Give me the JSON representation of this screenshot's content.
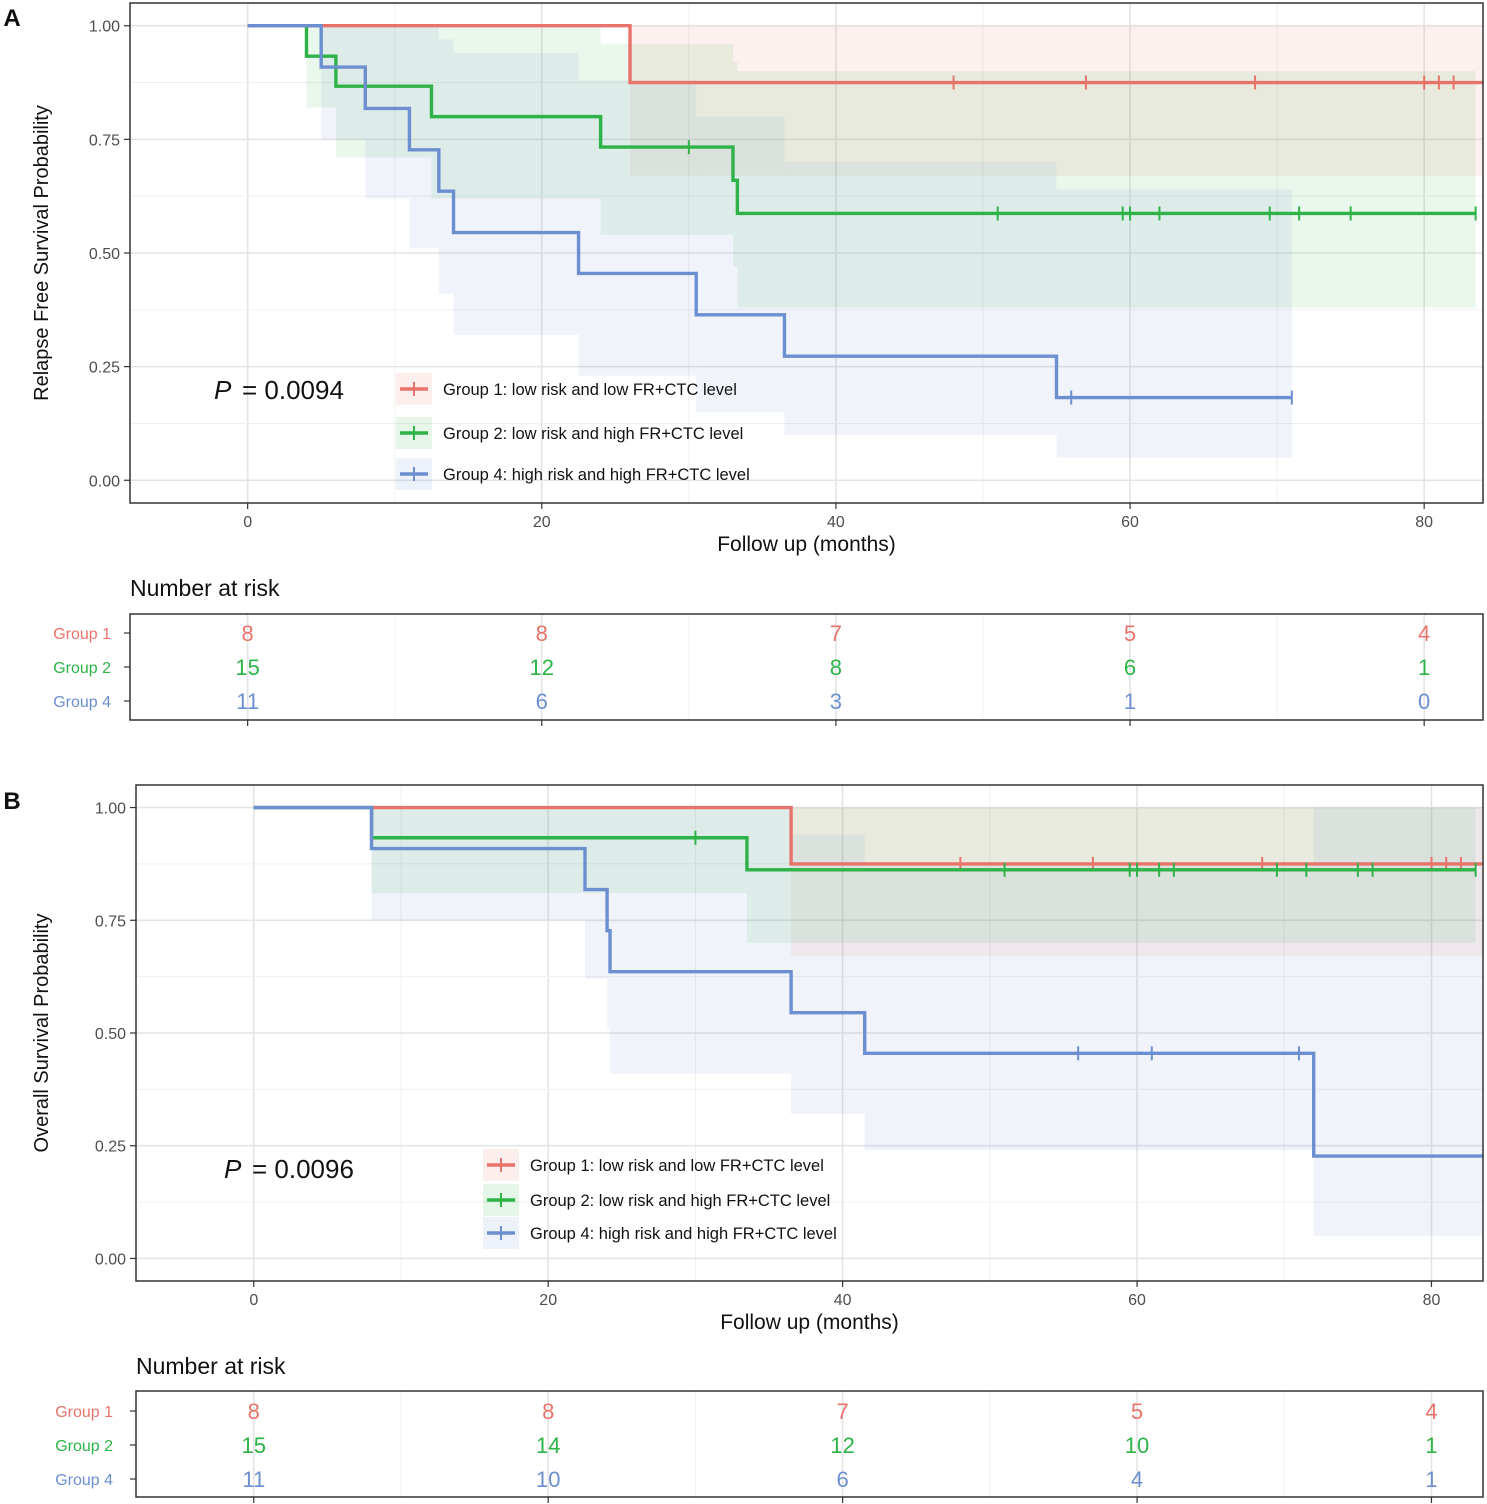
{
  "colors": {
    "group1": "#e8736b",
    "group2": "#2db347",
    "group4": "#6b8fd0",
    "grid_major": "#e4e4e4",
    "grid_minor": "#efefef",
    "panel_border": "#333333",
    "text": "#111111",
    "tick_text": "#4d4d4d"
  },
  "chart_data": [
    {
      "panel_label": "A",
      "type": "line",
      "subtype": "kaplan-meier",
      "ylabel": "Relapse Free Survival Probability",
      "xlabel": "Follow up (months)",
      "xlim": [
        -8,
        84
      ],
      "ylim": [
        -0.05,
        1.05
      ],
      "xticks": [
        0,
        20,
        40,
        60,
        80
      ],
      "yticks": [
        0,
        0.25,
        0.5,
        0.75,
        1.0
      ],
      "ytick_labels": [
        "0.00",
        "0.25",
        "0.50",
        "0.75",
        "1.00"
      ],
      "xtick_labels": [
        "0",
        "20",
        "40",
        "60",
        "80"
      ],
      "pvalue_prefix": "P",
      "pvalue_text": "= 0.0094",
      "legend": [
        "Group 1: low risk and low FR+CTC level",
        "Group 2: low risk and high FR+CTC level",
        "Group 4: high risk and high FR+CTC level"
      ],
      "series": [
        {
          "name": "Group 1",
          "color_key": "group1",
          "steps": [
            [
              0,
              1.0
            ],
            [
              26,
              0.875
            ],
            [
              84,
              0.875
            ]
          ],
          "ci": [
            [
              0,
              1.0,
              1.0
            ],
            [
              26,
              0.67,
              1.0
            ],
            [
              84,
              0.67,
              1.0
            ]
          ],
          "censor": [
            48,
            57,
            68.5,
            80,
            81,
            82
          ]
        },
        {
          "name": "Group 2",
          "color_key": "group2",
          "steps": [
            [
              0,
              1.0
            ],
            [
              4,
              0.933
            ],
            [
              6,
              0.867
            ],
            [
              12.5,
              0.8
            ],
            [
              24,
              0.733
            ],
            [
              33,
              0.66
            ],
            [
              33.3,
              0.587
            ],
            [
              83.5,
              0.587
            ]
          ],
          "ci": [
            [
              0,
              1.0,
              1.0
            ],
            [
              4,
              0.82,
              1.0
            ],
            [
              6,
              0.71,
              1.0
            ],
            [
              12.5,
              0.62,
              1.0
            ],
            [
              24,
              0.54,
              0.96
            ],
            [
              33,
              0.47,
              0.92
            ],
            [
              33.3,
              0.38,
              0.9
            ],
            [
              83.5,
              0.38,
              0.9
            ]
          ],
          "censor": [
            30,
            51,
            59.5,
            60,
            62,
            69.5,
            71.5,
            75,
            83.5
          ]
        },
        {
          "name": "Group 4",
          "color_key": "group4",
          "steps": [
            [
              0,
              1.0
            ],
            [
              5,
              0.909
            ],
            [
              8,
              0.818
            ],
            [
              11,
              0.727
            ],
            [
              13,
              0.636
            ],
            [
              14,
              0.545
            ],
            [
              22.5,
              0.455
            ],
            [
              30.5,
              0.364
            ],
            [
              36.5,
              0.273
            ],
            [
              55,
              0.182
            ],
            [
              71,
              0.182
            ]
          ],
          "ci": [
            [
              0,
              1.0,
              1.0
            ],
            [
              5,
              0.75,
              1.0
            ],
            [
              8,
              0.62,
              1.0
            ],
            [
              11,
              0.51,
              1.0
            ],
            [
              13,
              0.41,
              0.97
            ],
            [
              14,
              0.32,
              0.94
            ],
            [
              22.5,
              0.23,
              0.88
            ],
            [
              30.5,
              0.15,
              0.8
            ],
            [
              36.5,
              0.1,
              0.7
            ],
            [
              55,
              0.05,
              0.64
            ],
            [
              71,
              0.05,
              0.64
            ]
          ],
          "censor": [
            56,
            71
          ]
        }
      ],
      "risk_table": {
        "title": "Number at risk",
        "rows": [
          {
            "label": "Group 1",
            "color_key": "group1",
            "values": [
              "8",
              "8",
              "7",
              "5",
              "4"
            ]
          },
          {
            "label": "Group 2",
            "color_key": "group2",
            "values": [
              "15",
              "12",
              "8",
              "6",
              "1"
            ]
          },
          {
            "label": "Group 4",
            "color_key": "group4",
            "values": [
              "11",
              "6",
              "3",
              "1",
              "0"
            ]
          }
        ]
      }
    },
    {
      "panel_label": "B",
      "type": "line",
      "subtype": "kaplan-meier",
      "ylabel": "Overall Survival Probability",
      "xlabel": "Follow up (months)",
      "xlim": [
        -8,
        83.5
      ],
      "ylim": [
        -0.05,
        1.05
      ],
      "xticks": [
        0,
        20,
        40,
        60,
        80
      ],
      "yticks": [
        0,
        0.25,
        0.5,
        0.75,
        1.0
      ],
      "ytick_labels": [
        "0.00",
        "0.25",
        "0.50",
        "0.75",
        "1.00"
      ],
      "xtick_labels": [
        "0",
        "20",
        "40",
        "60",
        "80"
      ],
      "pvalue_prefix": "P",
      "pvalue_text": "= 0.0096",
      "legend": [
        "Group 1: low risk and low FR+CTC level",
        "Group 2: low risk and high FR+CTC level",
        "Group 4: high risk and high FR+CTC level"
      ],
      "series": [
        {
          "name": "Group 1",
          "color_key": "group1",
          "steps": [
            [
              0,
              1.0
            ],
            [
              36.5,
              0.875
            ],
            [
              83.5,
              0.875
            ]
          ],
          "ci": [
            [
              0,
              1.0,
              1.0
            ],
            [
              36.5,
              0.67,
              1.0
            ],
            [
              83.5,
              0.67,
              1.0
            ]
          ],
          "censor": [
            48,
            57,
            68.5,
            80,
            81,
            82
          ]
        },
        {
          "name": "Group 2",
          "color_key": "group2",
          "steps": [
            [
              0,
              1.0
            ],
            [
              8,
              0.933
            ],
            [
              33.5,
              0.862
            ],
            [
              83,
              0.862
            ]
          ],
          "ci": [
            [
              0,
              1.0,
              1.0
            ],
            [
              8,
              0.81,
              1.0
            ],
            [
              33.5,
              0.7,
              1.0
            ],
            [
              83,
              0.7,
              1.0
            ]
          ],
          "censor": [
            30,
            51,
            59.5,
            60,
            61.5,
            62.5,
            69.5,
            71.5,
            75,
            76,
            83
          ]
        },
        {
          "name": "Group 4",
          "color_key": "group4",
          "steps": [
            [
              0,
              1.0
            ],
            [
              8,
              0.909
            ],
            [
              22.5,
              0.818
            ],
            [
              24,
              0.727
            ],
            [
              24.2,
              0.636
            ],
            [
              36.5,
              0.545
            ],
            [
              41.5,
              0.455
            ],
            [
              72,
              0.227
            ],
            [
              83.5,
              0.227
            ]
          ],
          "ci": [
            [
              0,
              1.0,
              1.0
            ],
            [
              8,
              0.75,
              1.0
            ],
            [
              22.5,
              0.62,
              1.0
            ],
            [
              24,
              0.51,
              1.0
            ],
            [
              24.2,
              0.41,
              1.0
            ],
            [
              36.5,
              0.32,
              0.94
            ],
            [
              41.5,
              0.24,
              0.87
            ],
            [
              72,
              0.05,
              1.0
            ],
            [
              83.5,
              0.05,
              1.0
            ]
          ],
          "censor": [
            56,
            61,
            71
          ]
        }
      ],
      "risk_table": {
        "title": "Number at risk",
        "rows": [
          {
            "label": "Group 1",
            "color_key": "group1",
            "values": [
              "8",
              "8",
              "7",
              "5",
              "4"
            ]
          },
          {
            "label": "Group 2",
            "color_key": "group2",
            "values": [
              "15",
              "14",
              "12",
              "10",
              "1"
            ]
          },
          {
            "label": "Group 4",
            "color_key": "group4",
            "values": [
              "11",
              "10",
              "6",
              "4",
              "1"
            ]
          }
        ]
      }
    }
  ]
}
